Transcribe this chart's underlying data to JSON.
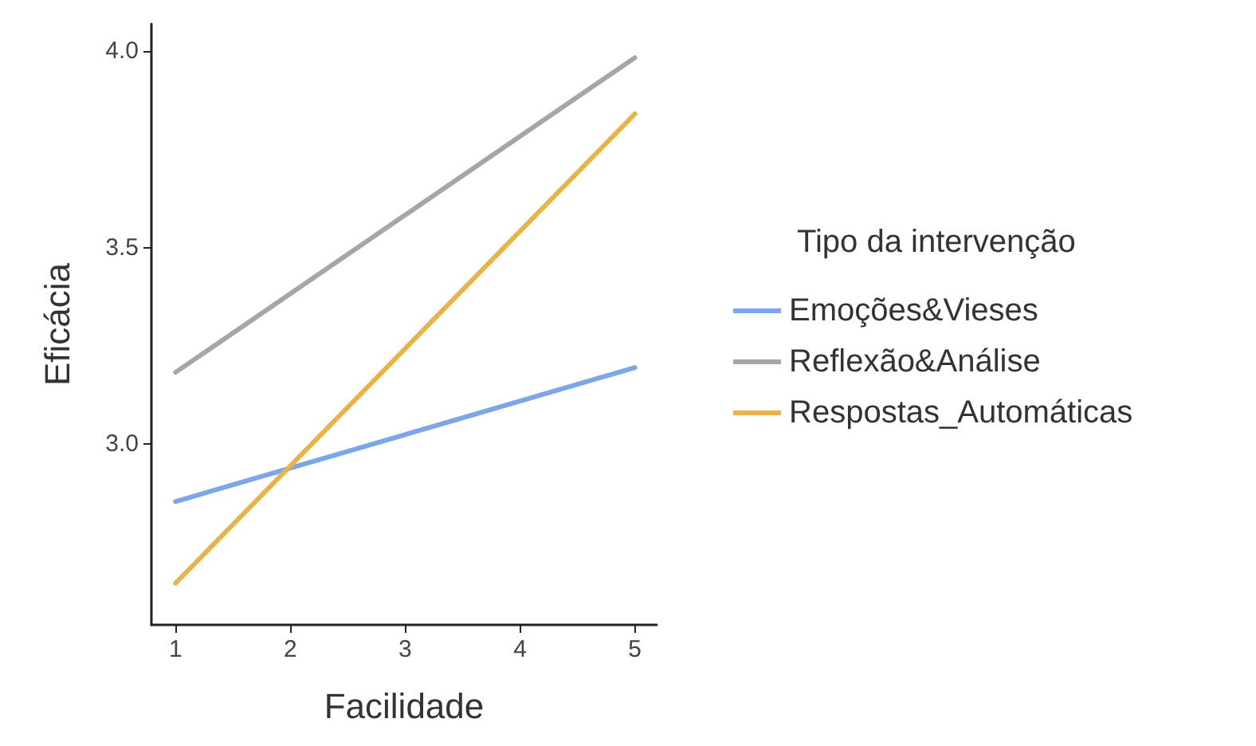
{
  "chart_data": {
    "type": "line",
    "xlabel": "Facilidade",
    "ylabel": "Eficácia",
    "legend_title": "Tipo da intervenção",
    "legend": "right",
    "grid": false,
    "marker": "none",
    "line_style": "solid",
    "x": [
      1,
      5
    ],
    "xlim": [
      0.79,
      5.19
    ],
    "xticks": [
      1,
      2,
      3,
      4,
      5
    ],
    "ylim": [
      2.54,
      4.07
    ],
    "yticks": [
      {
        "value": 3,
        "label": "3.0"
      },
      {
        "value": 3.5,
        "label": "3.5"
      },
      {
        "value": 4,
        "label": "4.0"
      }
    ],
    "series": [
      {
        "name": "Emoções&Vieses",
        "color": "#7ba6ea",
        "values": [
          2.854,
          3.195
        ]
      },
      {
        "name": "Reflexão&Análise",
        "color": "#a6a6a6",
        "values": [
          3.183,
          3.984
        ]
      },
      {
        "name": "Respostas_Automáticas",
        "color": "#e8b44a",
        "values": [
          2.646,
          3.841
        ]
      }
    ]
  }
}
